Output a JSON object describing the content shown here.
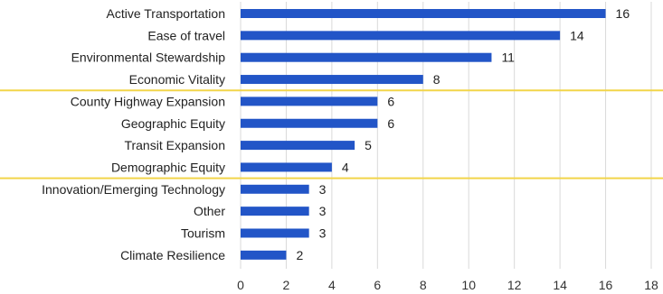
{
  "chart_data": {
    "type": "bar",
    "orientation": "horizontal",
    "title": "",
    "xlabel": "",
    "ylabel": "",
    "categories": [
      "Active Transportation",
      "Ease of travel",
      "Environmental Stewardship",
      "Economic Vitality",
      "County Highway Expansion",
      "Geographic Equity",
      "Transit Expansion",
      "Demographic Equity",
      "Innovation/Emerging Technology",
      "Other",
      "Tourism",
      "Climate Resilience"
    ],
    "values": [
      16,
      14,
      11,
      8,
      6,
      6,
      5,
      4,
      3,
      3,
      3,
      2
    ],
    "xlim": [
      0,
      18
    ],
    "xticks": [
      0,
      2,
      4,
      6,
      8,
      10,
      12,
      14,
      16,
      18
    ],
    "grid": "vertical",
    "data_labels": true,
    "group_separators_after": [
      3,
      7
    ],
    "colors": {
      "bar": "#2255c7",
      "separator": "#f2d54a",
      "grid": "#d9d9d9"
    }
  }
}
